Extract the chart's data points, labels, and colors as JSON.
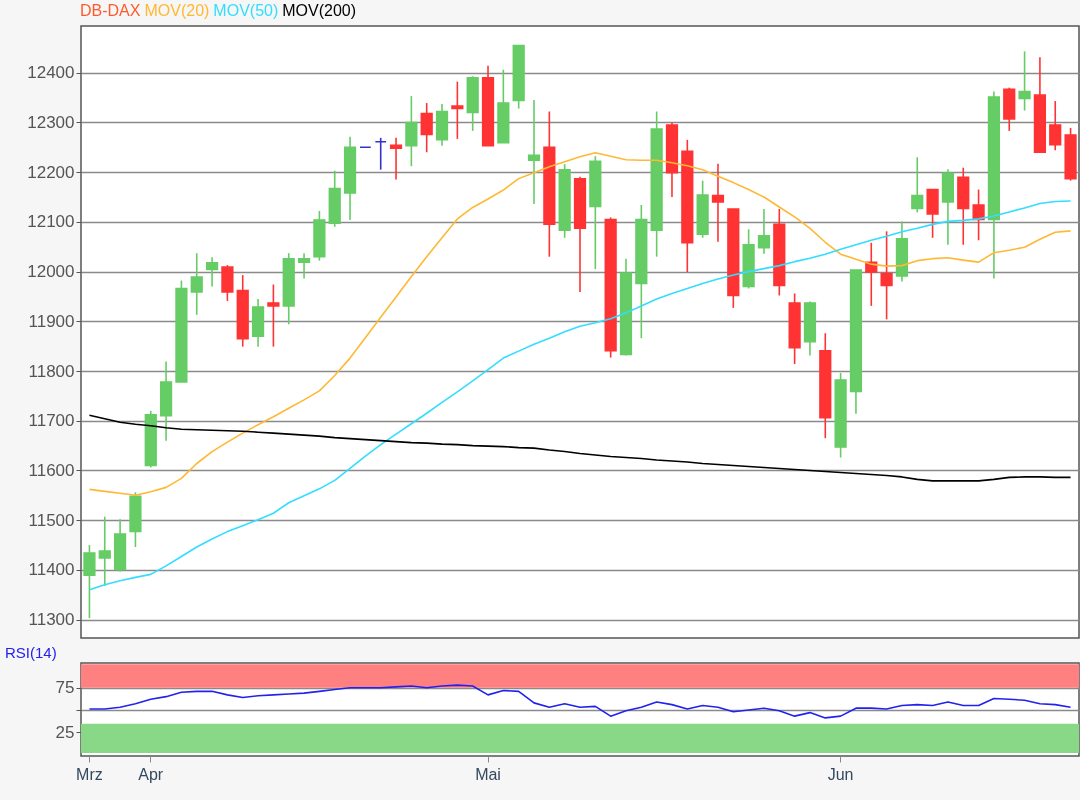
{
  "chart_data": [
    {
      "type": "candlestick",
      "title": "DB-DAX",
      "ylim": [
        11263,
        12494
      ],
      "yticks": [
        11300,
        11400,
        11500,
        11600,
        11700,
        11800,
        11900,
        12000,
        12100,
        12200,
        12300,
        12400
      ],
      "grid": "y",
      "tick_labels": "y",
      "legend": "top left",
      "categories": [
        null,
        null,
        null,
        null,
        null,
        null,
        null,
        null,
        null,
        null,
        null,
        null,
        null,
        null,
        null,
        null,
        null,
        null,
        null,
        null,
        null,
        null,
        null,
        null,
        null,
        null,
        null,
        null,
        null,
        null,
        null,
        null,
        null,
        null,
        null,
        null,
        null,
        null,
        null,
        null,
        null,
        null,
        null,
        null,
        null,
        null,
        null,
        null,
        null,
        null,
        null,
        null,
        null,
        null,
        null,
        null,
        null,
        null,
        null,
        null,
        null,
        null,
        null,
        null,
        null
      ],
      "colors": [
        "#66cc66",
        "#66cc66",
        "#66cc66",
        "#66cc66",
        "#66cc66",
        "#66cc66",
        "#66cc66",
        "#66cc66",
        "#66cc66",
        "#ff3333",
        "#ff3333",
        "#66cc66",
        "#ff3333",
        "#66cc66",
        "#66cc66",
        "#66cc66",
        "#66cc66",
        "#66cc66",
        "#3333cc",
        "#3333cc",
        "#ff3333",
        "#66cc66",
        "#ff3333",
        "#66cc66",
        "#ff3333",
        "#66cc66",
        "#ff3333",
        "#66cc66",
        "#66cc66",
        "#66cc66",
        "#ff3333",
        "#66cc66",
        "#ff3333",
        "#66cc66",
        "#ff3333",
        "#66cc66",
        "#66cc66",
        "#66cc66",
        "#ff3333",
        "#ff3333",
        "#66cc66",
        "#ff3333",
        "#ff3333",
        "#66cc66",
        "#66cc66",
        "#ff3333",
        "#ff3333",
        "#66cc66",
        "#ff3333",
        "#66cc66",
        "#66cc66",
        "#ff3333",
        "#ff3333",
        "#66cc66",
        "#66cc66",
        "#ff3333",
        "#66cc66",
        "#ff3333",
        "#ff3333",
        "#66cc66",
        "#ff3333",
        "#66cc66",
        "#ff3333",
        "#ff3333",
        "#ff3333"
      ],
      "ohlc": [
        [
          11389,
          11450,
          11303,
          11434
        ],
        [
          11424,
          11507,
          11368,
          11438
        ],
        [
          11401,
          11502,
          11397,
          11472
        ],
        [
          11477,
          11556,
          11446,
          11548
        ],
        [
          11610,
          11720,
          11606,
          11712
        ],
        [
          11710,
          11819,
          11660,
          11778
        ],
        [
          11778,
          11982,
          11778,
          11966
        ],
        [
          11959,
          12037,
          11913,
          11989
        ],
        [
          12004,
          12029,
          11970,
          12018
        ],
        [
          12009,
          12013,
          11941,
          11959
        ],
        [
          11962,
          11993,
          11849,
          11865
        ],
        [
          11870,
          11945,
          11849,
          11929
        ],
        [
          11937,
          11974,
          11849,
          11931
        ],
        [
          11931,
          12037,
          11894,
          12026
        ],
        [
          12019,
          12037,
          11986,
          12026
        ],
        [
          12030,
          12122,
          12022,
          12104
        ],
        [
          12097,
          12203,
          12090,
          12167
        ],
        [
          12158,
          12271,
          12104,
          12250
        ],
        [
          12250,
          12250,
          12250,
          12250
        ],
        [
          12261,
          12269,
          12205,
          12261
        ],
        [
          12254,
          12269,
          12185,
          12248
        ],
        [
          12253,
          12353,
          12212,
          12300
        ],
        [
          12318,
          12339,
          12240,
          12276
        ],
        [
          12265,
          12337,
          12253,
          12322
        ],
        [
          12333,
          12382,
          12267,
          12328
        ],
        [
          12320,
          12393,
          12283,
          12390
        ],
        [
          12390,
          12414,
          12253,
          12253
        ],
        [
          12259,
          12406,
          12259,
          12339
        ],
        [
          12344,
          12455,
          12328,
          12455
        ],
        [
          12224,
          12345,
          12136,
          12234
        ],
        [
          12250,
          12322,
          12030,
          12095
        ],
        [
          12083,
          12216,
          12068,
          12205
        ],
        [
          12187,
          12191,
          11959,
          12087
        ],
        [
          12131,
          12232,
          12005,
          12222
        ],
        [
          12105,
          12109,
          11827,
          11841
        ],
        [
          11833,
          12026,
          11831,
          11997
        ],
        [
          11976,
          12134,
          11866,
          12105
        ],
        [
          12083,
          12322,
          12030,
          12287
        ],
        [
          12295,
          12300,
          12150,
          12199
        ],
        [
          12242,
          12265,
          11999,
          12058
        ],
        [
          12075,
          12183,
          12068,
          12154
        ],
        [
          12153,
          12217,
          12060,
          12140
        ],
        [
          12126,
          12126,
          11927,
          11952
        ],
        [
          11970,
          12085,
          11966,
          12054
        ],
        [
          12048,
          12126,
          12036,
          12072
        ],
        [
          12095,
          12126,
          11952,
          11972
        ],
        [
          11937,
          11956,
          11814,
          11847
        ],
        [
          11859,
          11940,
          11831,
          11937
        ],
        [
          11841,
          11876,
          11665,
          11706
        ],
        [
          11647,
          11796,
          11626,
          11782
        ],
        [
          11759,
          12003,
          11714,
          12003
        ],
        [
          12019,
          12058,
          11931,
          11999
        ],
        [
          11996,
          12081,
          11904,
          11972
        ],
        [
          11991,
          12101,
          11980,
          12066
        ],
        [
          12127,
          12230,
          12119,
          12153
        ],
        [
          12165,
          12165,
          12068,
          12116
        ],
        [
          12140,
          12206,
          12054,
          12198
        ],
        [
          12190,
          12209,
          12054,
          12127
        ],
        [
          12134,
          12165,
          12063,
          12105
        ],
        [
          12105,
          12362,
          11986,
          12351
        ],
        [
          12367,
          12370,
          12283,
          12307
        ],
        [
          12348,
          12443,
          12324,
          12362
        ],
        [
          12355,
          12431,
          12240,
          12240
        ],
        [
          12295,
          12343,
          12244,
          12255
        ],
        [
          12275,
          12289,
          12183,
          12187
        ]
      ],
      "series": [
        {
          "name": "MOV(20)",
          "type": "line",
          "color": "#ffb833",
          "values": [
            11562,
            11558,
            11554,
            11550,
            11557,
            11566,
            11584,
            11614,
            11638,
            11657,
            11675,
            11692,
            11708,
            11725,
            11742,
            11760,
            11791,
            11826,
            11867,
            11908,
            11949,
            11990,
            12030,
            12068,
            12106,
            12129,
            12146,
            12164,
            12187,
            12199,
            12211,
            12221,
            12231,
            12239,
            12232,
            12225,
            12224,
            12224,
            12219,
            12213,
            12205,
            12192,
            12179,
            12165,
            12150,
            12130,
            12110,
            12087,
            12059,
            12035,
            12025,
            12015,
            12011,
            12012,
            12022,
            12026,
            12028,
            12023,
            12019,
            12038,
            12043,
            12049,
            12065,
            12079,
            12082
          ]
        },
        {
          "name": "MOV(50)",
          "type": "line",
          "color": "#33ddff",
          "values": [
            11360,
            11370,
            11378,
            11385,
            11391,
            11408,
            11427,
            11446,
            11462,
            11477,
            11489,
            11501,
            11514,
            11535,
            11549,
            11563,
            11580,
            11604,
            11629,
            11652,
            11673,
            11694,
            11715,
            11737,
            11758,
            11780,
            11803,
            11826,
            11840,
            11854,
            11866,
            11879,
            11890,
            11897,
            11905,
            11917,
            11931,
            11945,
            11956,
            11966,
            11976,
            11985,
            11993,
            12000,
            12006,
            12012,
            12020,
            12027,
            12035,
            12045,
            12054,
            12063,
            12071,
            12080,
            12087,
            12095,
            12101,
            12103,
            12106,
            12112,
            12120,
            12128,
            12137,
            12141,
            12142
          ]
        },
        {
          "name": "MOV(200)",
          "type": "line",
          "color": "#000000",
          "values": [
            11711,
            11704,
            11697,
            11693,
            11690,
            11686,
            11683,
            11682,
            11681,
            11680,
            11679,
            11677,
            11675,
            11673,
            11671,
            11669,
            11666,
            11664,
            11662,
            11660,
            11658,
            11656,
            11655,
            11653,
            11652,
            11650,
            11649,
            11648,
            11646,
            11645,
            11641,
            11638,
            11634,
            11631,
            11628,
            11626,
            11624,
            11621,
            11619,
            11617,
            11614,
            11612,
            11610,
            11608,
            11606,
            11604,
            11602,
            11600,
            11598,
            11596,
            11594,
            11592,
            11590,
            11587,
            11582,
            11579,
            11579,
            11579,
            11579,
            11582,
            11586,
            11587,
            11587,
            11586,
            11586
          ]
        }
      ]
    },
    {
      "type": "line",
      "title": "RSI(14)",
      "ylim": [
        -2,
        103
      ],
      "yticks": [
        25,
        {
          "value": 50,
          "label": null
        },
        75
      ],
      "grid": "y",
      "categories": [
        "Mrz",
        null,
        null,
        null,
        "Apr",
        null,
        null,
        null,
        null,
        null,
        null,
        null,
        null,
        null,
        null,
        null,
        null,
        null,
        null,
        null,
        null,
        null,
        null,
        null,
        null,
        null,
        "Mai",
        null,
        null,
        null,
        null,
        null,
        null,
        null,
        null,
        null,
        null,
        null,
        null,
        null,
        null,
        null,
        null,
        null,
        null,
        null,
        null,
        null,
        null,
        "Jun",
        null,
        null,
        null,
        null,
        null,
        null,
        null,
        null,
        null,
        null,
        null,
        null,
        null,
        null,
        null
      ],
      "bands": [
        {
          "axis": "y",
          "from": 75,
          "to": 101.5,
          "color": "#ff8080"
        },
        {
          "axis": "y",
          "from": 1.5,
          "to": 34.5,
          "color": "#88d888"
        }
      ],
      "series": [
        {
          "color": "#2222ee",
          "values": [
            51,
            51,
            53,
            57,
            62,
            65,
            70,
            71,
            71,
            67,
            64,
            66,
            67,
            68,
            69,
            71,
            73,
            75,
            75,
            75,
            76,
            77,
            75,
            77,
            78,
            77,
            67,
            72,
            71,
            58,
            53,
            57,
            53,
            54,
            43,
            49,
            53,
            59,
            56,
            51,
            55,
            53,
            48,
            50,
            52,
            49,
            43,
            47,
            41,
            43,
            52,
            52,
            51,
            55,
            56,
            55,
            59,
            55,
            55,
            63,
            62,
            61,
            57,
            56,
            53
          ]
        }
      ]
    }
  ]
}
